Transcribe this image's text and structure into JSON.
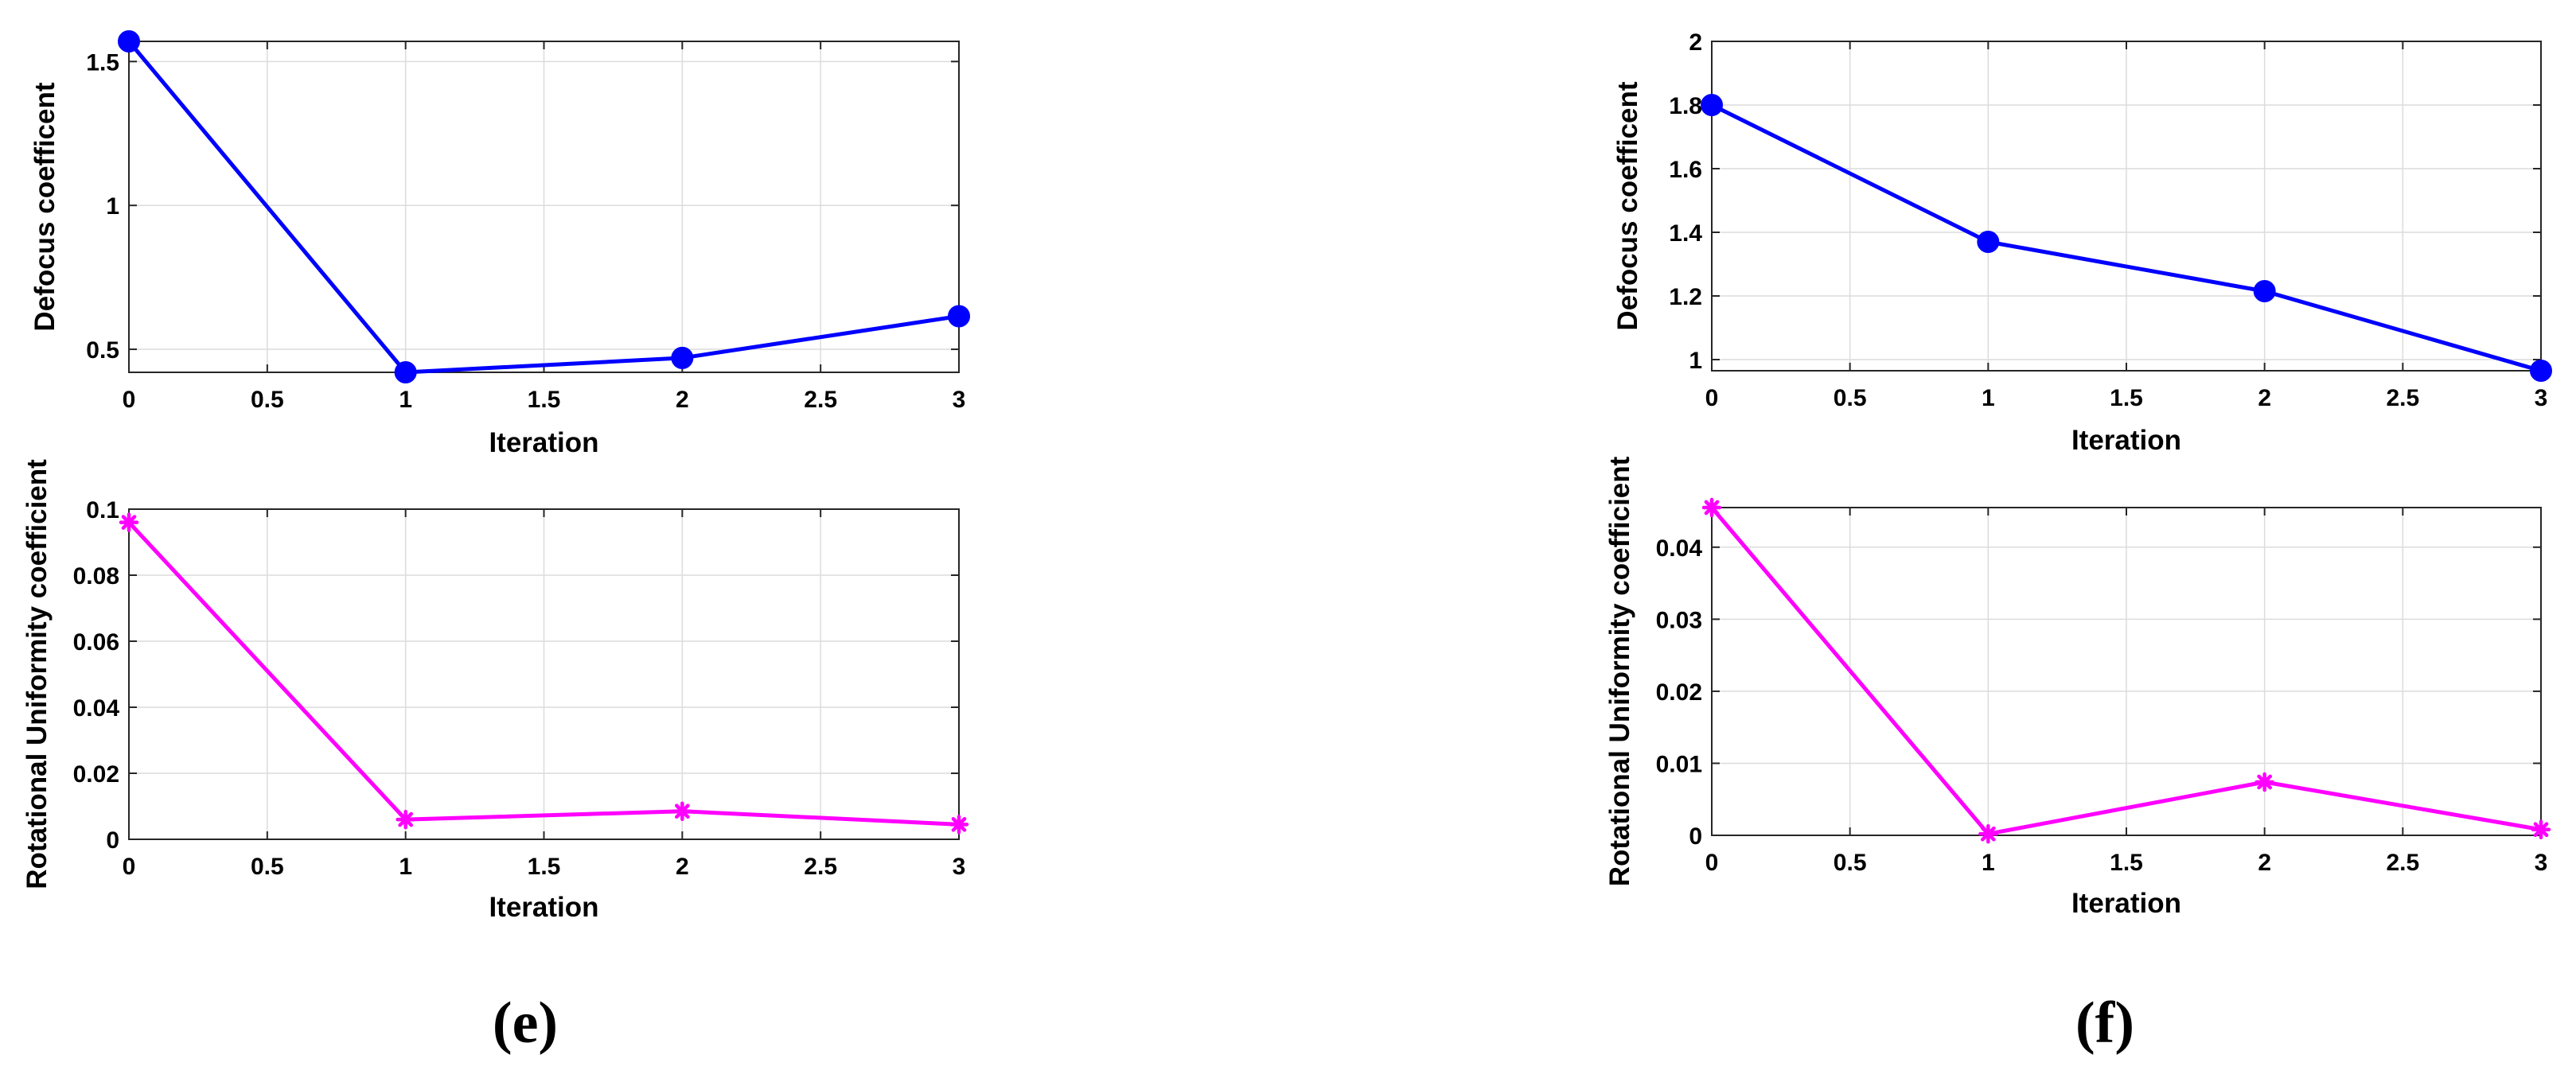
{
  "panel_labels": [
    "(e)",
    "(f)"
  ],
  "chart_data": [
    {
      "type": "line",
      "panel": "(e)",
      "xlabel": "Iteration",
      "ylabel": "Defocus coefficent",
      "x": [
        0,
        1,
        2,
        3
      ],
      "values": [
        1.57,
        0.42,
        0.47,
        0.615
      ],
      "xlim": [
        0,
        3
      ],
      "ylim": [
        0.42,
        1.57
      ],
      "xticks": [
        0,
        0.5,
        1,
        1.5,
        2,
        2.5,
        3
      ],
      "xticklabels": [
        "0",
        "0.5",
        "1",
        "1.5",
        "2",
        "2.5",
        "3"
      ],
      "yticks": [
        0.5,
        1,
        1.5
      ],
      "yticklabels": [
        "0.5",
        "1",
        "1.5"
      ],
      "marker": "circle",
      "color": "#0000ff",
      "grid": true
    },
    {
      "type": "line",
      "panel": "(e)",
      "xlabel": "Iteration",
      "ylabel": "Rotational Uniformity coefficient",
      "x": [
        0,
        1,
        2,
        3
      ],
      "values": [
        0.096,
        0.006,
        0.0085,
        0.0045
      ],
      "xlim": [
        0,
        3
      ],
      "ylim": [
        0,
        0.1
      ],
      "xticks": [
        0,
        0.5,
        1,
        1.5,
        2,
        2.5,
        3
      ],
      "xticklabels": [
        "0",
        "0.5",
        "1",
        "1.5",
        "2",
        "2.5",
        "3"
      ],
      "yticks": [
        0,
        0.02,
        0.04,
        0.06,
        0.08,
        0.1
      ],
      "yticklabels": [
        "0",
        "0.02",
        "0.04",
        "0.06",
        "0.08",
        "0.1"
      ],
      "marker": "asterisk",
      "color": "#ff00ff",
      "grid": true
    },
    {
      "type": "line",
      "panel": "(f)",
      "xlabel": "Iteration",
      "ylabel": "Defocus coefficent",
      "x": [
        0,
        1,
        2,
        3
      ],
      "values": [
        1.8,
        1.37,
        1.215,
        0.965
      ],
      "xlim": [
        0,
        3
      ],
      "ylim": [
        0.965,
        2
      ],
      "xticks": [
        0,
        0.5,
        1,
        1.5,
        2,
        2.5,
        3
      ],
      "xticklabels": [
        "0",
        "0.5",
        "1",
        "1.5",
        "2",
        "2.5",
        "3"
      ],
      "yticks": [
        1,
        1.2,
        1.4,
        1.6,
        1.8,
        2
      ],
      "yticklabels": [
        "1",
        "1.2",
        "1.4",
        "1.6",
        "1.8",
        "2"
      ],
      "marker": "circle",
      "color": "#0000ff",
      "grid": true
    },
    {
      "type": "line",
      "panel": "(f)",
      "xlabel": "Iteration",
      "ylabel": "Rotational Uniformity coefficient",
      "x": [
        0,
        1,
        2,
        3
      ],
      "values": [
        0.0455,
        0.0002,
        0.0074,
        0.0008
      ],
      "xlim": [
        0,
        3
      ],
      "ylim": [
        0,
        0.0455
      ],
      "xticks": [
        0,
        0.5,
        1,
        1.5,
        2,
        2.5,
        3
      ],
      "xticklabels": [
        "0",
        "0.5",
        "1",
        "1.5",
        "2",
        "2.5",
        "3"
      ],
      "yticks": [
        0,
        0.01,
        0.02,
        0.03,
        0.04
      ],
      "yticklabels": [
        "0",
        "0.01",
        "0.02",
        "0.03",
        "0.04"
      ],
      "marker": "asterisk",
      "color": "#ff00ff",
      "grid": true
    }
  ]
}
